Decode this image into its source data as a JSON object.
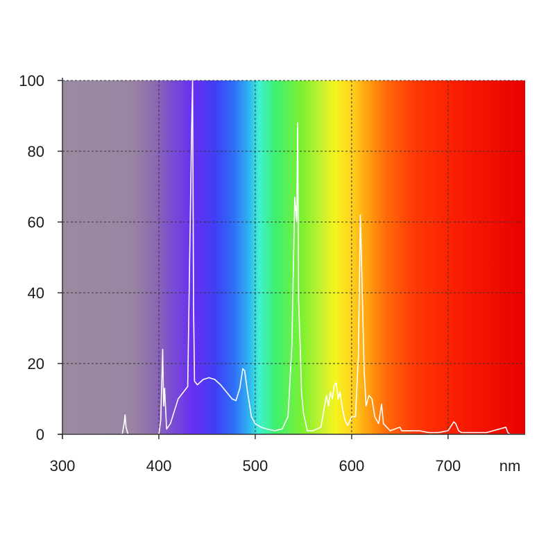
{
  "chart_data": {
    "type": "line",
    "title": "",
    "xlabel": "",
    "ylabel": "",
    "x_unit": "nm",
    "xlim": [
      300,
      780
    ],
    "ylim": [
      0,
      100
    ],
    "x_ticks": [
      300,
      400,
      500,
      600,
      700
    ],
    "y_ticks": [
      0,
      20,
      40,
      60,
      80,
      100
    ],
    "grid": "dashed",
    "legend": "none",
    "background": "visible spectrum gradient (violet to red), grey-purple below ~400 nm",
    "line_color": "#ffffff",
    "series": [
      {
        "x": [
          300,
          362,
          364,
          365,
          366,
          368,
          380,
          400,
          402,
          404,
          405,
          406,
          408,
          412,
          420,
          430,
          434,
          435,
          436,
          437,
          440,
          446,
          452,
          458,
          464,
          470,
          476,
          480,
          484,
          487,
          489,
          492,
          496,
          500,
          506,
          512,
          520,
          528,
          534,
          538,
          541,
          543,
          544,
          545,
          546,
          547,
          548,
          550,
          554,
          560,
          568,
          574,
          576,
          578,
          580,
          582,
          584,
          586,
          588,
          590,
          593,
          596,
          600,
          604,
          607,
          609,
          611,
          613,
          615,
          618,
          621,
          624,
          628,
          631,
          633,
          640,
          650,
          652,
          660,
          670,
          680,
          690,
          700,
          706,
          708,
          711,
          714,
          720,
          740,
          760,
          762,
          764,
          780
        ],
        "y": [
          0,
          0,
          3,
          5.5,
          2,
          0,
          0,
          0,
          4,
          24,
          8,
          13,
          1.5,
          3,
          10,
          13.5,
          86,
          100,
          36,
          15,
          14,
          15.5,
          16,
          15.5,
          14,
          12,
          10,
          9.5,
          13,
          18.5,
          18,
          12,
          5,
          3,
          2,
          1.5,
          1,
          1.5,
          5,
          25,
          67,
          60,
          88,
          38,
          30,
          22,
          12,
          6,
          1,
          1,
          2,
          11,
          8,
          12,
          10,
          14,
          14.5,
          10,
          12,
          8,
          4,
          2.5,
          5,
          5,
          22,
          62,
          40,
          18,
          8,
          11,
          10,
          5,
          3,
          8.5,
          3,
          1,
          2,
          1,
          1,
          1,
          0.5,
          0.5,
          1,
          3.5,
          3,
          1,
          0.5,
          0.5,
          0.5,
          2,
          0.5,
          0,
          0
        ]
      }
    ]
  }
}
